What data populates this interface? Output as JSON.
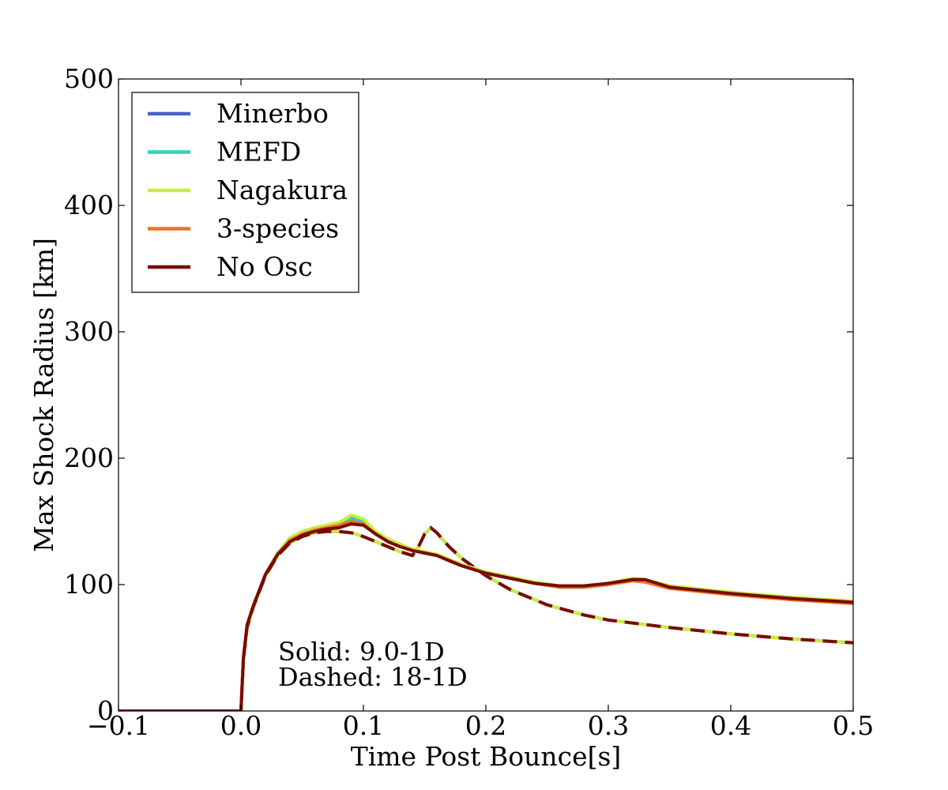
{
  "chart_data": {
    "type": "line",
    "xlabel": "Time Post Bounce[s]",
    "ylabel": "Max Shock Radius [km]",
    "xlim": [
      -0.1,
      0.5
    ],
    "ylim": [
      0,
      500
    ],
    "xticks": [
      -0.1,
      0.0,
      0.1,
      0.2,
      0.3,
      0.4,
      0.5
    ],
    "xtick_labels": [
      "−0.1",
      "0.0",
      "0.1",
      "0.2",
      "0.3",
      "0.4",
      "0.5"
    ],
    "yticks": [
      0,
      100,
      200,
      300,
      400,
      500
    ],
    "ytick_labels": [
      "0",
      "100",
      "200",
      "300",
      "400",
      "500"
    ],
    "grid": false,
    "legend_position": "top-left",
    "annotations": [
      "Solid: 9.0-1D",
      "Dashed: 18-1D"
    ],
    "series": [
      {
        "name": "Minerbo",
        "color": "#4b5fd0"
      },
      {
        "name": "MEFD",
        "color": "#2ad6b4"
      },
      {
        "name": "Nagakura",
        "color": "#c6ef3c"
      },
      {
        "name": "3-species",
        "color": "#f07329"
      },
      {
        "name": "No Osc",
        "color": "#7a0a00"
      }
    ],
    "curves": {
      "solid_9_0_1D": {
        "Nagakura": {
          "x": [
            -0.1,
            0.0,
            0.002,
            0.005,
            0.01,
            0.02,
            0.03,
            0.04,
            0.05,
            0.06,
            0.07,
            0.08,
            0.09,
            0.1,
            0.11,
            0.12,
            0.13,
            0.14,
            0.15,
            0.16,
            0.17,
            0.18,
            0.2,
            0.22,
            0.24,
            0.26,
            0.28,
            0.3,
            0.32,
            0.33,
            0.35,
            0.4,
            0.45,
            0.5
          ],
          "y": [
            0,
            0,
            42,
            68,
            83,
            108,
            125,
            137,
            142,
            145,
            147,
            149,
            155,
            152,
            142,
            136,
            132,
            128,
            126,
            124,
            120,
            116,
            110,
            106,
            102,
            99,
            99,
            101,
            105,
            104,
            99,
            94,
            90,
            87
          ]
        },
        "Minerbo": {
          "x": [
            -0.1,
            0.0,
            0.002,
            0.005,
            0.01,
            0.02,
            0.03,
            0.04,
            0.05,
            0.06,
            0.07,
            0.08,
            0.09,
            0.1,
            0.11,
            0.12,
            0.13,
            0.14,
            0.15,
            0.16,
            0.17,
            0.18,
            0.2,
            0.22,
            0.24,
            0.26,
            0.28,
            0.3,
            0.32,
            0.33,
            0.35,
            0.4,
            0.45,
            0.5
          ],
          "y": [
            0,
            0,
            42,
            68,
            83,
            108,
            125,
            136,
            141,
            144,
            146,
            148,
            153,
            150,
            141,
            135,
            131,
            127,
            125,
            123,
            119,
            115,
            109,
            105,
            101,
            98,
            98,
            100,
            104,
            103,
            98,
            93,
            89,
            86
          ]
        },
        "MEFD": {
          "x": [
            -0.1,
            0.0,
            0.002,
            0.005,
            0.01,
            0.02,
            0.03,
            0.04,
            0.05,
            0.06,
            0.07,
            0.08,
            0.09,
            0.1,
            0.11,
            0.12,
            0.13,
            0.14,
            0.15,
            0.16,
            0.17,
            0.18,
            0.2,
            0.22,
            0.24,
            0.26,
            0.28,
            0.3,
            0.32,
            0.33,
            0.35,
            0.4,
            0.45,
            0.5
          ],
          "y": [
            0,
            0,
            42,
            68,
            83,
            108,
            125,
            136,
            141,
            144,
            146,
            148,
            152,
            150,
            141,
            135,
            131,
            127,
            125,
            123,
            119,
            115,
            109,
            105,
            101,
            98,
            98,
            100,
            104,
            103,
            98,
            93,
            89,
            86
          ]
        },
        "3-species": {
          "x": [
            -0.1,
            0.0,
            0.002,
            0.005,
            0.01,
            0.02,
            0.03,
            0.04,
            0.05,
            0.06,
            0.07,
            0.08,
            0.09,
            0.1,
            0.11,
            0.12,
            0.13,
            0.14,
            0.15,
            0.16,
            0.17,
            0.18,
            0.2,
            0.22,
            0.24,
            0.26,
            0.28,
            0.3,
            0.32,
            0.33,
            0.35,
            0.4,
            0.45,
            0.5
          ],
          "y": [
            0,
            0,
            42,
            68,
            83,
            108,
            124,
            135,
            140,
            143,
            145,
            147,
            150,
            148,
            140,
            134,
            130,
            127,
            125,
            123,
            119,
            115,
            109,
            105,
            101,
            98,
            98,
            100,
            103,
            102,
            97,
            92,
            88,
            85
          ]
        },
        "No Osc": {
          "x": [
            -0.1,
            0.0,
            0.002,
            0.005,
            0.01,
            0.02,
            0.03,
            0.04,
            0.05,
            0.06,
            0.07,
            0.08,
            0.09,
            0.1,
            0.11,
            0.12,
            0.13,
            0.14,
            0.15,
            0.16,
            0.17,
            0.18,
            0.2,
            0.22,
            0.24,
            0.26,
            0.28,
            0.3,
            0.32,
            0.33,
            0.35,
            0.4,
            0.45,
            0.5
          ],
          "y": [
            0,
            0,
            42,
            68,
            83,
            108,
            124,
            134,
            139,
            142,
            144,
            145,
            148,
            147,
            140,
            134,
            130,
            127,
            125,
            123,
            119,
            115,
            109,
            105,
            101,
            99,
            99,
            101,
            104,
            104,
            98,
            93,
            89,
            86
          ]
        }
      },
      "dashed_18_1D": {
        "x": [
          -0.1,
          0.0,
          0.002,
          0.005,
          0.01,
          0.02,
          0.03,
          0.04,
          0.05,
          0.06,
          0.07,
          0.08,
          0.09,
          0.1,
          0.11,
          0.12,
          0.13,
          0.14,
          0.145,
          0.15,
          0.155,
          0.16,
          0.17,
          0.18,
          0.2,
          0.22,
          0.25,
          0.28,
          0.3,
          0.35,
          0.4,
          0.45,
          0.5
        ],
        "y": [
          0,
          0,
          40,
          66,
          82,
          107,
          123,
          133,
          138,
          141,
          142,
          142,
          141,
          138,
          134,
          130,
          126,
          123,
          130,
          140,
          145,
          141,
          130,
          121,
          107,
          96,
          84,
          76,
          72,
          66,
          61,
          57,
          54
        ]
      }
    }
  }
}
